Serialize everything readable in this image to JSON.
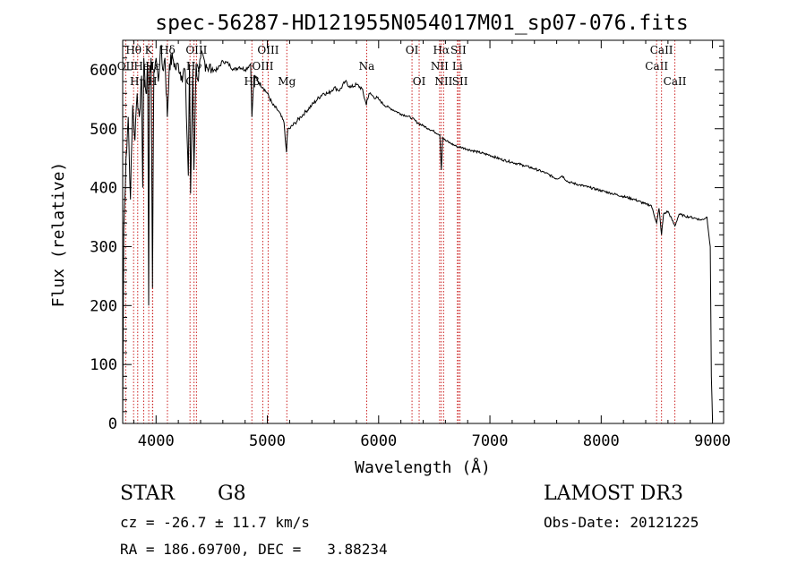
{
  "chart_data": {
    "type": "line",
    "title": "spec-56287-HD121955N054017M01_sp07-076.fits",
    "xlabel": "Wavelength (Å)",
    "ylabel": "Flux (relative)",
    "xlim": [
      3700,
      9100
    ],
    "ylim": [
      0,
      650
    ],
    "x_ticks": [
      4000,
      5000,
      6000,
      7000,
      8000,
      9000
    ],
    "y_ticks": [
      0,
      100,
      200,
      300,
      400,
      500,
      600
    ],
    "grid": false,
    "series": [
      {
        "name": "spectrum",
        "x": [
          3700,
          3710,
          3730,
          3750,
          3770,
          3790,
          3810,
          3830,
          3850,
          3870,
          3880,
          3890,
          3910,
          3925,
          3933,
          3940,
          3955,
          3968,
          3980,
          4000,
          4020,
          4040,
          4060,
          4080,
          4101,
          4120,
          4150,
          4180,
          4200,
          4230,
          4260,
          4290,
          4300,
          4310,
          4330,
          4340,
          4360,
          4380,
          4400,
          4450,
          4500,
          4550,
          4600,
          4650,
          4700,
          4750,
          4800,
          4850,
          4861,
          4880,
          4920,
          4960,
          5000,
          5050,
          5100,
          5150,
          5167,
          5172,
          5183,
          5200,
          5250,
          5300,
          5350,
          5400,
          5450,
          5500,
          5550,
          5600,
          5650,
          5700,
          5750,
          5800,
          5850,
          5890,
          5896,
          5920,
          5950,
          6000,
          6050,
          6100,
          6150,
          6200,
          6250,
          6300,
          6350,
          6400,
          6450,
          6500,
          6550,
          6563,
          6575,
          6600,
          6650,
          6700,
          6750,
          6800,
          6900,
          7000,
          7100,
          7200,
          7300,
          7400,
          7500,
          7600,
          7650,
          7700,
          7800,
          7900,
          8000,
          8100,
          8200,
          8300,
          8400,
          8450,
          8498,
          8520,
          8542,
          8560,
          8600,
          8662,
          8700,
          8750,
          8800,
          8850,
          8900,
          8950,
          8980,
          8990,
          9000
        ],
        "y": [
          10,
          330,
          450,
          520,
          380,
          540,
          480,
          560,
          520,
          590,
          400,
          620,
          560,
          600,
          200,
          580,
          620,
          230,
          600,
          620,
          580,
          640,
          600,
          620,
          520,
          610,
          620,
          600,
          610,
          590,
          600,
          420,
          610,
          390,
          600,
          430,
          610,
          580,
          620,
          610,
          600,
          600,
          615,
          610,
          600,
          605,
          600,
          610,
          520,
          590,
          580,
          570,
          560,
          540,
          530,
          510,
          470,
          460,
          500,
          500,
          510,
          520,
          530,
          540,
          550,
          560,
          560,
          570,
          565,
          580,
          570,
          575,
          568,
          540,
          550,
          560,
          555,
          550,
          540,
          535,
          530,
          525,
          522,
          518,
          510,
          505,
          500,
          495,
          490,
          430,
          485,
          480,
          475,
          470,
          468,
          465,
          460,
          455,
          448,
          443,
          438,
          432,
          425,
          415,
          420,
          410,
          405,
          400,
          395,
          390,
          385,
          380,
          372,
          370,
          340,
          365,
          320,
          355,
          360,
          335,
          355,
          352,
          350,
          348,
          345,
          350,
          300,
          80,
          5
        ]
      }
    ],
    "line_markers": [
      {
        "label": "Hθ",
        "wavelength": 3798,
        "row": 1
      },
      {
        "label": "OII",
        "wavelength": 3727,
        "row": 2
      },
      {
        "label": "Hη",
        "wavelength": 3835,
        "row": 3
      },
      {
        "label": "HeI",
        "wavelength": 3889,
        "row": 2
      },
      {
        "label": "K",
        "wavelength": 3934,
        "row": 1
      },
      {
        "label": "H",
        "wavelength": 3968,
        "row": 3
      },
      {
        "label": "Hε",
        "wavelength": 3970,
        "row": 2
      },
      {
        "label": "Hδ",
        "wavelength": 4102,
        "row": 1
      },
      {
        "label": "G",
        "wavelength": 4305,
        "row": 3
      },
      {
        "label": "OIII",
        "wavelength": 4363,
        "row": 1
      },
      {
        "label": "Hγ",
        "wavelength": 4341,
        "row": 2
      },
      {
        "label": "Hβ",
        "wavelength": 4861,
        "row": 3
      },
      {
        "label": "OIII",
        "wavelength": 4959,
        "row": 2
      },
      {
        "label": "OIII",
        "wavelength": 5007,
        "row": 1
      },
      {
        "label": "Mg",
        "wavelength": 5175,
        "row": 3
      },
      {
        "label": "Na",
        "wavelength": 5893,
        "row": 2
      },
      {
        "label": "OI",
        "wavelength": 6300,
        "row": 1
      },
      {
        "label": "OI",
        "wavelength": 6364,
        "row": 3
      },
      {
        "label": "Hα",
        "wavelength": 6563,
        "row": 1
      },
      {
        "label": "NII",
        "wavelength": 6548,
        "row": 2
      },
      {
        "label": "NII",
        "wavelength": 6584,
        "row": 3
      },
      {
        "label": "SII",
        "wavelength": 6717,
        "row": 1
      },
      {
        "label": "Li",
        "wavelength": 6708,
        "row": 2
      },
      {
        "label": "SII",
        "wavelength": 6731,
        "row": 3
      },
      {
        "label": "CaII",
        "wavelength": 8498,
        "row": 2
      },
      {
        "label": "CaII",
        "wavelength": 8542,
        "row": 1
      },
      {
        "label": "CaII",
        "wavelength": 8662,
        "row": 3
      }
    ]
  },
  "info": {
    "object_class": "STAR",
    "subclass": "G8",
    "survey": "LAMOST DR3",
    "cz": "cz = -26.7 ± 11.7 km/s",
    "obs_date": "Obs-Date: 20121225",
    "radec": "RA = 186.69700, DEC =   3.88234"
  }
}
